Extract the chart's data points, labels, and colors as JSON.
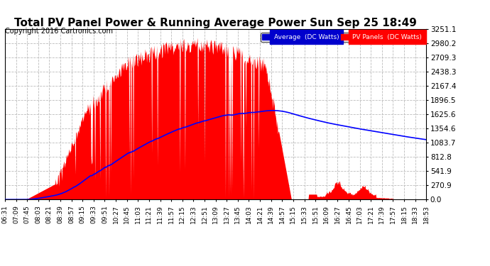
{
  "title": "Total PV Panel Power & Running Average Power Sun Sep 25 18:49",
  "copyright": "Copyright 2016 Cartronics.com",
  "legend_avg": "Average  (DC Watts)",
  "legend_pv": "PV Panels  (DC Watts)",
  "yticks": [
    0.0,
    270.9,
    541.9,
    812.8,
    1083.7,
    1354.6,
    1625.6,
    1896.5,
    2167.4,
    2438.3,
    2709.3,
    2980.2,
    3251.1
  ],
  "ymax": 3251.1,
  "ymin": 0.0,
  "bg_color": "#ffffff",
  "plot_bg_color": "#ffffff",
  "grid_color": "#bbbbbb",
  "fill_color": "#ff0000",
  "avg_line_color": "#0000ff",
  "title_fontsize": 11,
  "copyright_fontsize": 7,
  "tick_fontsize": 6.5,
  "ytick_fontsize": 7.5,
  "time_labels": [
    "06:31",
    "07:09",
    "07:45",
    "08:03",
    "08:21",
    "08:39",
    "08:57",
    "09:15",
    "09:33",
    "09:51",
    "10:27",
    "10:45",
    "11:03",
    "11:21",
    "11:39",
    "11:57",
    "12:15",
    "12:33",
    "12:51",
    "13:09",
    "13:27",
    "13:45",
    "14:03",
    "14:21",
    "14:39",
    "14:57",
    "15:15",
    "15:33",
    "15:51",
    "16:09",
    "16:27",
    "16:45",
    "17:03",
    "17:21",
    "17:39",
    "17:57",
    "18:15",
    "18:33",
    "18:53"
  ]
}
